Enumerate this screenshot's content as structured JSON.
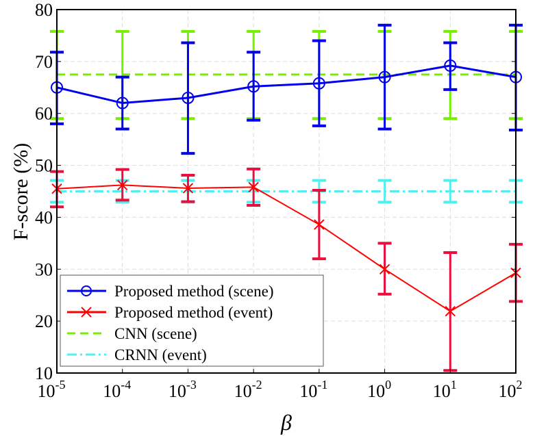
{
  "chart_data": {
    "type": "line",
    "title": "",
    "xlabel": "β",
    "ylabel": "F-score (%)",
    "xscale": "log",
    "x_tick_labels": [
      {
        "base": "10",
        "exp": "-5"
      },
      {
        "base": "10",
        "exp": "-4"
      },
      {
        "base": "10",
        "exp": "-3"
      },
      {
        "base": "10",
        "exp": "-2"
      },
      {
        "base": "10",
        "exp": "-1"
      },
      {
        "base": "10",
        "exp": "0"
      },
      {
        "base": "10",
        "exp": "1"
      },
      {
        "base": "10",
        "exp": "2"
      }
    ],
    "x": [
      -5,
      -4,
      -3,
      -2,
      -1,
      0,
      1,
      2
    ],
    "y_ticks": [
      10,
      20,
      30,
      40,
      50,
      60,
      70,
      80
    ],
    "ylim": [
      10,
      80
    ],
    "grid": true,
    "legend_position": "bottom-left",
    "series": [
      {
        "name": "Proposed method (scene)",
        "color": "#0000ee",
        "marker": "circle",
        "style": "solid",
        "values": [
          65,
          62,
          63,
          65.2,
          65.8,
          67,
          69.2,
          67
        ],
        "lower": [
          58,
          57,
          52.3,
          58.7,
          57.6,
          57,
          64.6,
          56.8
        ],
        "upper": [
          71.8,
          67,
          73.6,
          71.8,
          74,
          77,
          73.6,
          77
        ]
      },
      {
        "name": "Proposed method (event)",
        "color": "#ff0000",
        "errcolor": "#e8103c",
        "marker": "x",
        "style": "solid",
        "values": [
          45.5,
          46.2,
          45.6,
          45.8,
          38.6,
          30,
          21.9,
          29.3
        ],
        "lower": [
          42,
          43.3,
          43,
          42.3,
          32,
          25.2,
          10.5,
          23.8
        ],
        "upper": [
          48.8,
          49.2,
          48.1,
          49.3,
          45.2,
          35,
          33.2,
          34.8
        ]
      },
      {
        "name": "CNN (scene)",
        "color": "#77ee00",
        "marker": "none",
        "style": "dashed",
        "values": [
          67.5,
          67.5,
          67.5,
          67.5,
          67.5,
          67.5,
          67.5,
          67.5
        ],
        "lower": [
          59,
          59,
          59,
          59,
          59,
          59,
          59,
          59
        ],
        "upper": [
          75.8,
          75.8,
          75.8,
          75.8,
          75.8,
          75.8,
          75.8,
          75.8
        ]
      },
      {
        "name": "CRNN (event)",
        "color": "#55eeee",
        "marker": "none",
        "style": "dashdot",
        "values": [
          45,
          45,
          45,
          45,
          45,
          45,
          45,
          45
        ],
        "lower": [
          42.9,
          42.9,
          42.9,
          42.9,
          42.9,
          42.9,
          42.9,
          42.9
        ],
        "upper": [
          47.1,
          47.1,
          47.1,
          47.1,
          47.1,
          47.1,
          47.1,
          47.1
        ]
      }
    ]
  }
}
